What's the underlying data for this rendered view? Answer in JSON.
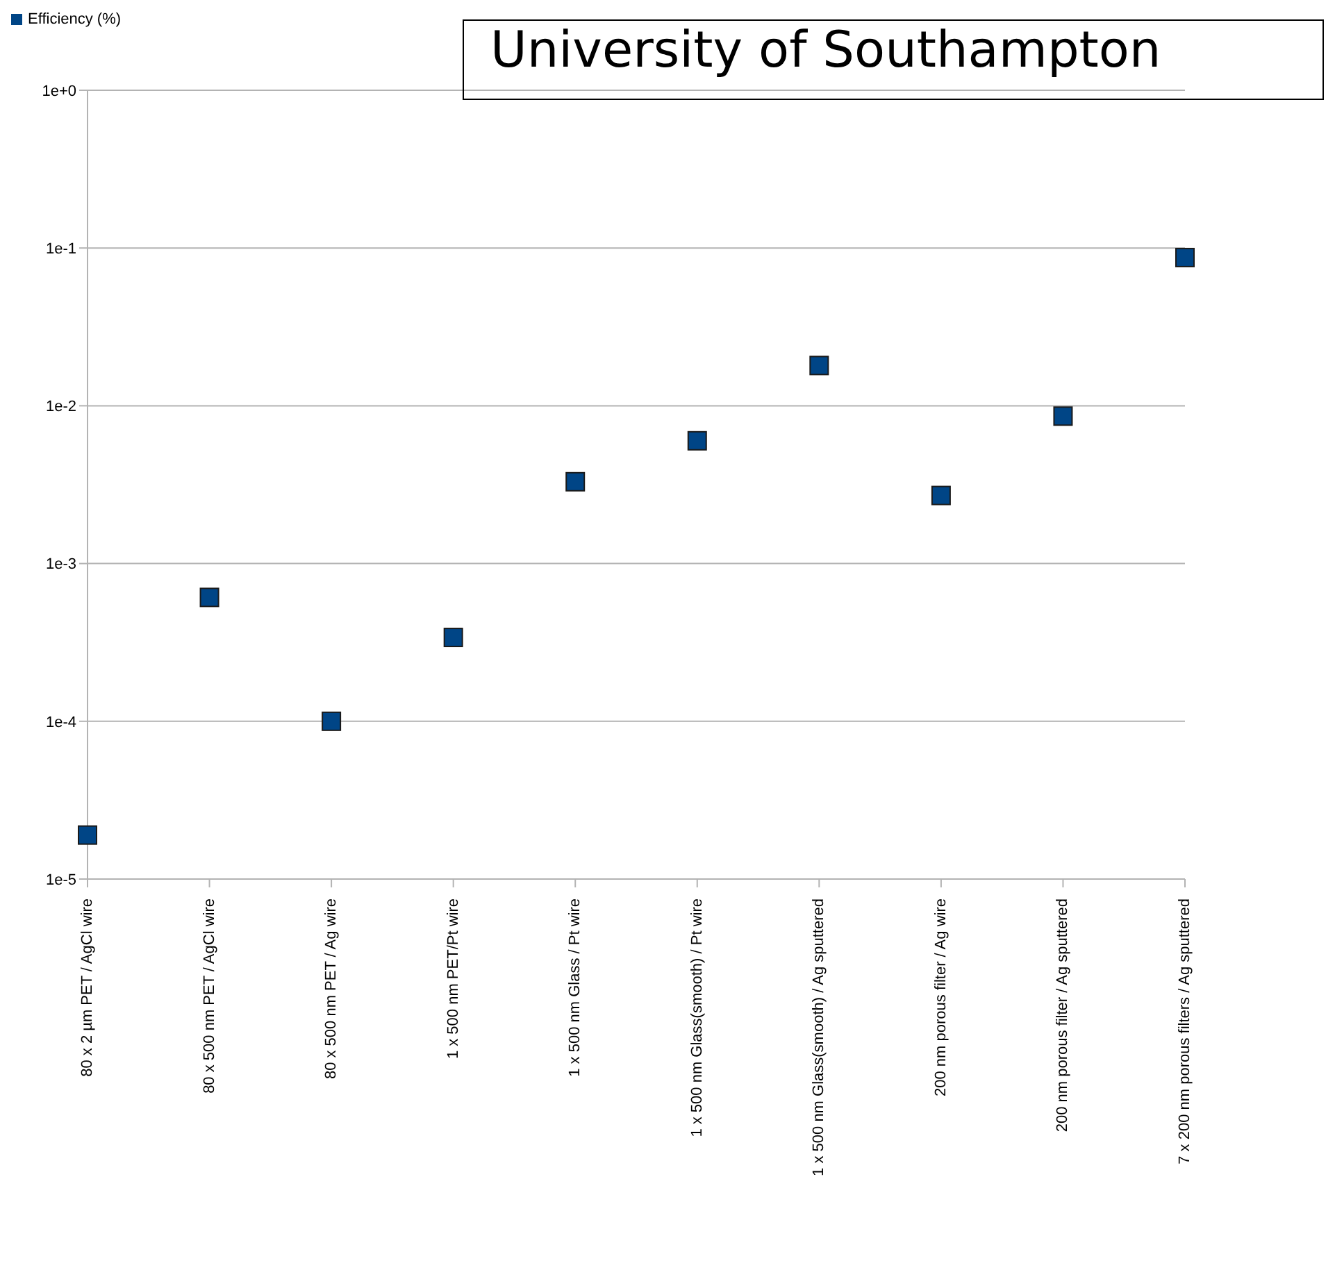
{
  "chart_data": {
    "type": "scatter",
    "categories": [
      "80 x 2 µm PET / AgCl wire",
      "80 x 500 nm PET / AgCl wire",
      "80 x 500 nm PET / Ag wire",
      "1 x 500 nm PET/Pt wire",
      "1 x 500 nm Glass / Pt wire",
      "1 x 500 nm Glass(smooth) / Pt wire",
      "1 x 500 nm Glass(smooth) / Ag sputtered",
      "200 nm porous filter / Ag wire",
      "200 nm porous filter / Ag sputtered",
      "7 x 200 nm porous filters / Ag sputtered"
    ],
    "series": [
      {
        "name": "Efficiency (%)",
        "color": "#004586",
        "values": [
          1.9e-05,
          0.00061,
          0.0001,
          0.00034,
          0.0033,
          0.006,
          0.018,
          0.0027,
          0.0086,
          0.087
        ]
      }
    ],
    "log": "y",
    "ylim": [
      1e-05,
      1
    ],
    "yticks": [
      {
        "value": 1e-05,
        "label": "1e-5"
      },
      {
        "value": 0.0001,
        "label": "1e-4"
      },
      {
        "value": 0.001,
        "label": "1e-3"
      },
      {
        "value": 0.01,
        "label": "1e-2"
      },
      {
        "value": 0.1,
        "label": "1e-1"
      },
      {
        "value": 1,
        "label": "1e+0"
      }
    ],
    "grid": "y",
    "legend": "top left",
    "marker": "square",
    "annotations": [
      "University of Southampton"
    ]
  }
}
